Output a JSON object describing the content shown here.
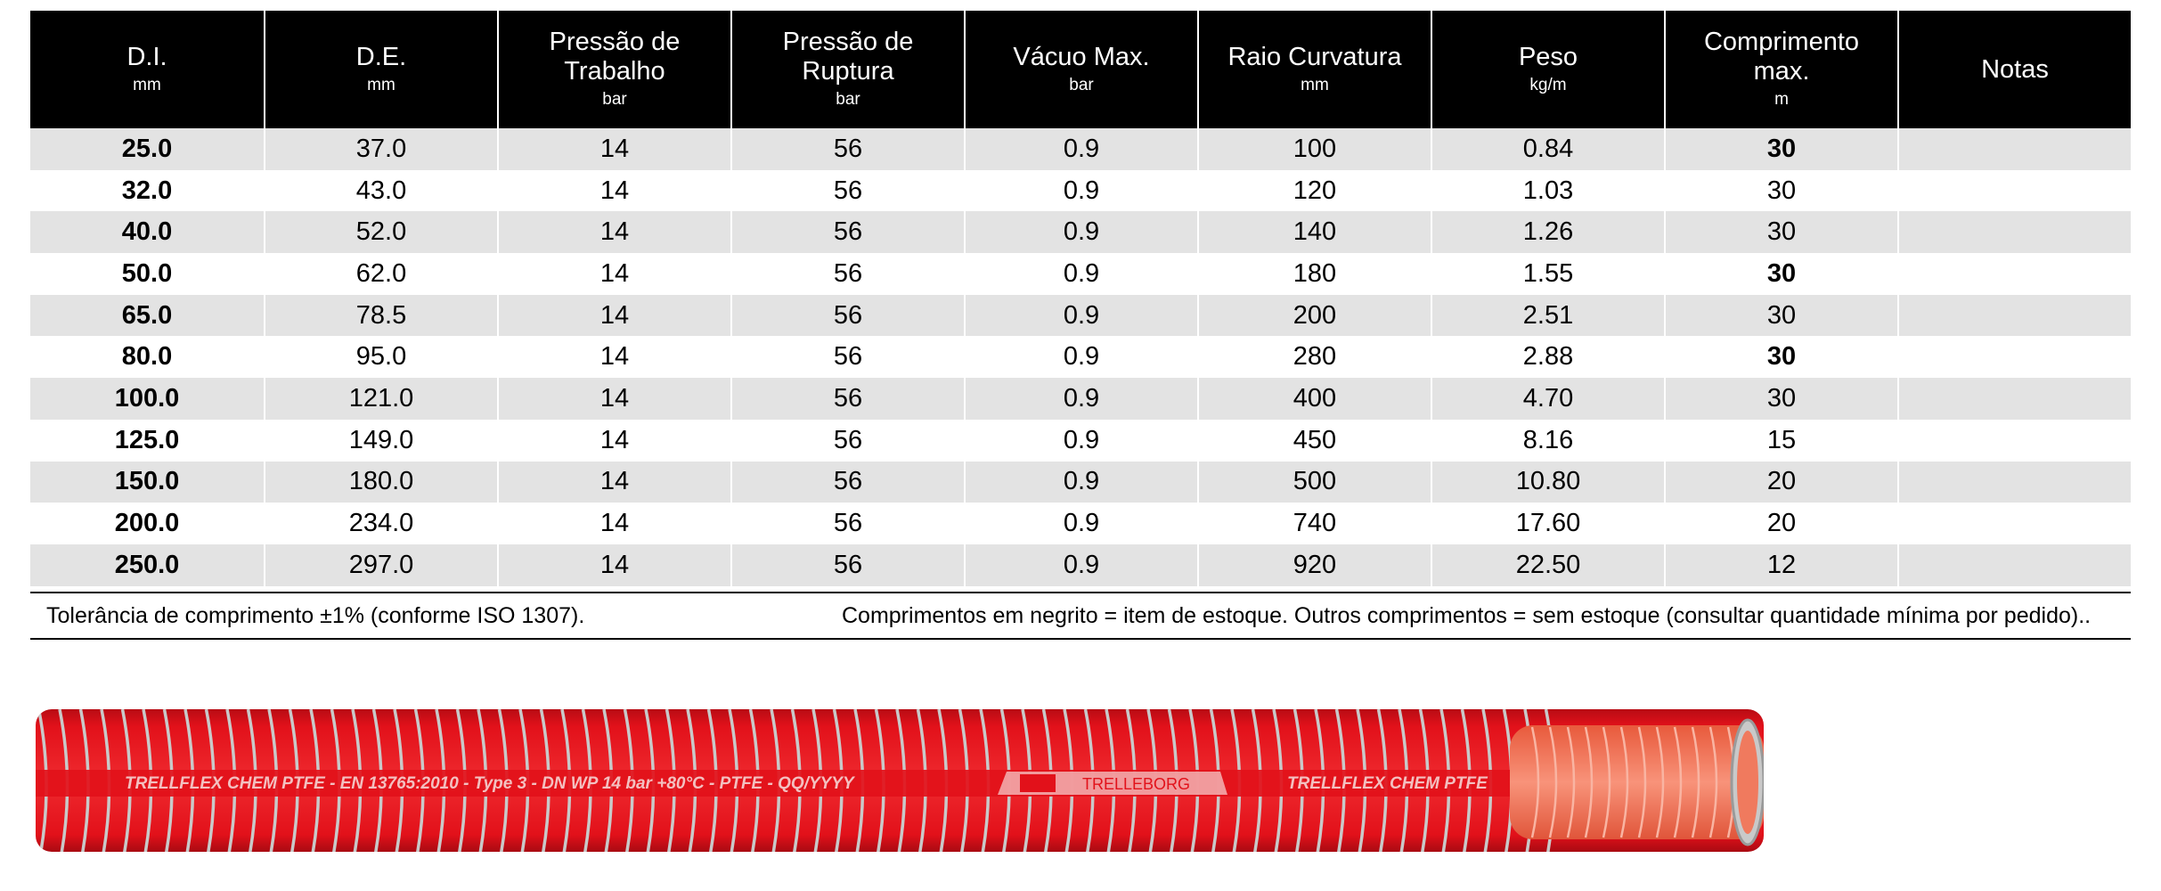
{
  "table": {
    "columns": [
      {
        "lines": [
          "D.I."
        ],
        "unit": "mm"
      },
      {
        "lines": [
          "D.E."
        ],
        "unit": "mm"
      },
      {
        "lines": [
          "Pressão de",
          "Trabalho"
        ],
        "unit": "bar"
      },
      {
        "lines": [
          "Pressão de",
          "Ruptura"
        ],
        "unit": "bar"
      },
      {
        "lines": [
          "Vácuo Max."
        ],
        "unit": "bar"
      },
      {
        "lines": [
          "Raio Curvatura"
        ],
        "unit": "mm"
      },
      {
        "lines": [
          "Peso"
        ],
        "unit": "kg/m"
      },
      {
        "lines": [
          "Comprimento",
          "max."
        ],
        "unit": "m"
      },
      {
        "lines": [
          "Notas"
        ],
        "unit": ""
      }
    ],
    "rows": [
      {
        "cells": [
          "25.0",
          "37.0",
          "14",
          "56",
          "0.9",
          "100",
          "0.84",
          "30",
          ""
        ],
        "stock": true
      },
      {
        "cells": [
          "32.0",
          "43.0",
          "14",
          "56",
          "0.9",
          "120",
          "1.03",
          "30",
          ""
        ],
        "stock": false
      },
      {
        "cells": [
          "40.0",
          "52.0",
          "14",
          "56",
          "0.9",
          "140",
          "1.26",
          "30",
          ""
        ],
        "stock": false
      },
      {
        "cells": [
          "50.0",
          "62.0",
          "14",
          "56",
          "0.9",
          "180",
          "1.55",
          "30",
          ""
        ],
        "stock": true
      },
      {
        "cells": [
          "65.0",
          "78.5",
          "14",
          "56",
          "0.9",
          "200",
          "2.51",
          "30",
          ""
        ],
        "stock": false
      },
      {
        "cells": [
          "80.0",
          "95.0",
          "14",
          "56",
          "0.9",
          "280",
          "2.88",
          "30",
          ""
        ],
        "stock": true
      },
      {
        "cells": [
          "100.0",
          "121.0",
          "14",
          "56",
          "0.9",
          "400",
          "4.70",
          "30",
          ""
        ],
        "stock": false
      },
      {
        "cells": [
          "125.0",
          "149.0",
          "14",
          "56",
          "0.9",
          "450",
          "8.16",
          "15",
          ""
        ],
        "stock": false
      },
      {
        "cells": [
          "150.0",
          "180.0",
          "14",
          "56",
          "0.9",
          "500",
          "10.80",
          "20",
          ""
        ],
        "stock": false
      },
      {
        "cells": [
          "200.0",
          "234.0",
          "14",
          "56",
          "0.9",
          "740",
          "17.60",
          "20",
          ""
        ],
        "stock": false
      },
      {
        "cells": [
          "250.0",
          "297.0",
          "14",
          "56",
          "0.9",
          "920",
          "22.50",
          "12",
          ""
        ],
        "stock": false
      }
    ]
  },
  "notes": {
    "tolerance": "Tolerância de comprimento ±1% (conforme ISO 1307).",
    "stock": "Comprimentos em negrito = item de estoque. Outros comprimentos = sem estoque (consultar quantidade mínima por pedido).."
  },
  "hose": {
    "print_text": "TRELLFLEX CHEM PTFE - EN 13765:2010 - Type 3 - DN   WP 14 bar   +80°C - PTFE - QQ/YYYY",
    "brand": "TRELLEBORG",
    "print_text_2": "TRELLFLEX CHEM PTFE",
    "colors": {
      "body": "#e2111a",
      "stripe": "#c9c9c9",
      "inner": "#f4775a"
    }
  }
}
